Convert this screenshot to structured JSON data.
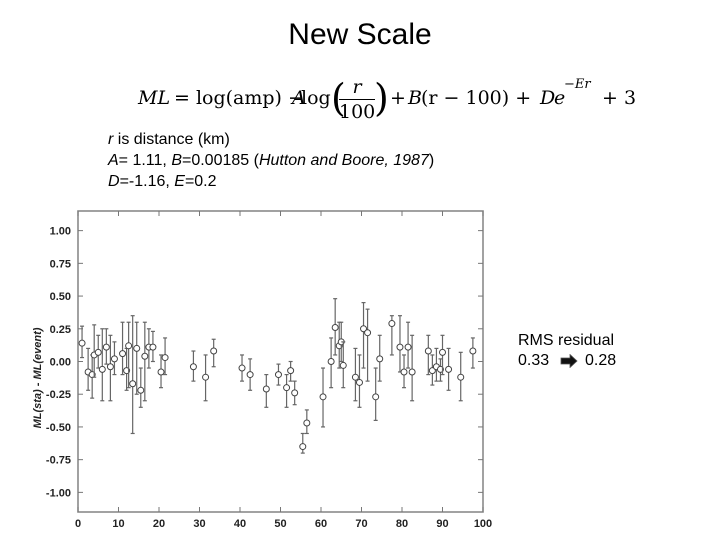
{
  "slide": {
    "title": "New Scale",
    "formula": {
      "ml": "ML",
      "eq": "= log(amp) − ",
      "a": "A",
      "log": " log",
      "frac_num": "r",
      "frac_den": "100",
      "plus1": "+ ",
      "b": "B",
      "mid": "(r − 100) + ",
      "d": "D",
      "e": "e",
      "exp": "−Er",
      "end": "+ 3"
    },
    "description": {
      "line1_var": "r",
      "line1_rest": " is distance (km)",
      "line2_a": "A",
      "line2_a_val": "= 1.11, ",
      "line2_b": "B",
      "line2_b_val": "=0.00185 (",
      "line2_ref": "Hutton and Boore, 1987",
      "line2_close": ")",
      "line3_d": "D",
      "line3_d_val": "=-1.16, ",
      "line3_e": "E",
      "line3_e_val": "=0.2"
    },
    "rms": {
      "label": "RMS residual",
      "before": "0.33",
      "after": "0.28",
      "arrow_icon": "right-arrow-icon"
    }
  },
  "chart_data": {
    "type": "scatter",
    "title": "",
    "xlabel": "",
    "ylabel": "ML(sta) - ML(event)",
    "xlim": [
      0,
      100
    ],
    "ylim": [
      -1.15,
      1.15
    ],
    "x_ticks": [
      0,
      10,
      20,
      30,
      40,
      50,
      60,
      70,
      80,
      90,
      100
    ],
    "y_ticks": [
      1.0,
      0.75,
      0.5,
      0.25,
      0.0,
      -0.25,
      -0.5,
      -0.75,
      -1.0
    ],
    "y_tick_labels": [
      "1.00",
      "0.75",
      "0.50",
      "0.25",
      "0.00",
      "-0.25",
      "-0.50",
      "-0.75",
      "-1.00"
    ],
    "grid": false,
    "error_bars": true,
    "points": [
      {
        "x": 1,
        "y": 0.14,
        "lo": 0.03,
        "hi": 0.27
      },
      {
        "x": 2.5,
        "y": -0.08,
        "lo": -0.22,
        "hi": 0.1
      },
      {
        "x": 3.5,
        "y": -0.1,
        "lo": -0.28,
        "hi": 0.05
      },
      {
        "x": 4,
        "y": 0.05,
        "lo": -0.12,
        "hi": 0.28
      },
      {
        "x": 5,
        "y": 0.07,
        "lo": -0.05,
        "hi": 0.2
      },
      {
        "x": 6,
        "y": -0.06,
        "lo": -0.3,
        "hi": 0.25
      },
      {
        "x": 7,
        "y": 0.11,
        "lo": -0.02,
        "hi": 0.25
      },
      {
        "x": 8,
        "y": -0.04,
        "lo": -0.3,
        "hi": 0.2
      },
      {
        "x": 9,
        "y": 0.02,
        "lo": -0.1,
        "hi": 0.15
      },
      {
        "x": 11,
        "y": 0.06,
        "lo": -0.1,
        "hi": 0.3
      },
      {
        "x": 12,
        "y": -0.07,
        "lo": -0.22,
        "hi": 0.1
      },
      {
        "x": 12.5,
        "y": 0.12,
        "lo": -0.2,
        "hi": 0.3
      },
      {
        "x": 13.5,
        "y": -0.17,
        "lo": -0.55,
        "hi": 0.35
      },
      {
        "x": 14.5,
        "y": 0.1,
        "lo": -0.25,
        "hi": 0.3
      },
      {
        "x": 15.5,
        "y": -0.22,
        "lo": -0.35,
        "hi": -0.05
      },
      {
        "x": 16.5,
        "y": 0.04,
        "lo": -0.3,
        "hi": 0.3
      },
      {
        "x": 17.5,
        "y": 0.11,
        "lo": -0.05,
        "hi": 0.25
      },
      {
        "x": 18.5,
        "y": 0.11,
        "lo": 0.0,
        "hi": 0.23
      },
      {
        "x": 20.5,
        "y": -0.08,
        "lo": -0.2,
        "hi": 0.05
      },
      {
        "x": 21.5,
        "y": 0.03,
        "lo": -0.1,
        "hi": 0.18
      },
      {
        "x": 28.5,
        "y": -0.04,
        "lo": -0.15,
        "hi": 0.08
      },
      {
        "x": 31.5,
        "y": -0.12,
        "lo": -0.3,
        "hi": 0.05
      },
      {
        "x": 33.5,
        "y": 0.08,
        "lo": -0.04,
        "hi": 0.17
      },
      {
        "x": 40.5,
        "y": -0.05,
        "lo": -0.15,
        "hi": 0.05
      },
      {
        "x": 42.5,
        "y": -0.1,
        "lo": -0.22,
        "hi": 0.02
      },
      {
        "x": 46.5,
        "y": -0.21,
        "lo": -0.35,
        "hi": -0.1
      },
      {
        "x": 49.5,
        "y": -0.1,
        "lo": -0.18,
        "hi": -0.02
      },
      {
        "x": 51.5,
        "y": -0.2,
        "lo": -0.35,
        "hi": -0.1
      },
      {
        "x": 52.5,
        "y": -0.07,
        "lo": -0.15,
        "hi": 0.0
      },
      {
        "x": 53.5,
        "y": -0.24,
        "lo": -0.33,
        "hi": -0.15
      },
      {
        "x": 55.5,
        "y": -0.65,
        "lo": -0.7,
        "hi": -0.55
      },
      {
        "x": 56.5,
        "y": -0.47,
        "lo": -0.55,
        "hi": -0.37
      },
      {
        "x": 60.5,
        "y": -0.27,
        "lo": -0.5,
        "hi": -0.05
      },
      {
        "x": 62.5,
        "y": 0.0,
        "lo": -0.2,
        "hi": 0.18
      },
      {
        "x": 63.5,
        "y": 0.26,
        "lo": 0.05,
        "hi": 0.48
      },
      {
        "x": 64.5,
        "y": 0.12,
        "lo": -0.05,
        "hi": 0.3
      },
      {
        "x": 65,
        "y": 0.15,
        "lo": 0.0,
        "hi": 0.3
      },
      {
        "x": 65.5,
        "y": -0.03,
        "lo": -0.2,
        "hi": 0.15
      },
      {
        "x": 68.5,
        "y": -0.12,
        "lo": -0.3,
        "hi": 0.1
      },
      {
        "x": 69.5,
        "y": -0.16,
        "lo": -0.35,
        "hi": 0.05
      },
      {
        "x": 70.5,
        "y": 0.25,
        "lo": -0.05,
        "hi": 0.45
      },
      {
        "x": 71.5,
        "y": 0.22,
        "lo": -0.15,
        "hi": 0.4
      },
      {
        "x": 73.5,
        "y": -0.27,
        "lo": -0.45,
        "hi": -0.05
      },
      {
        "x": 74.5,
        "y": 0.02,
        "lo": -0.15,
        "hi": 0.2
      },
      {
        "x": 77.5,
        "y": 0.29,
        "lo": 0.05,
        "hi": 0.35
      },
      {
        "x": 79.5,
        "y": 0.11,
        "lo": -0.08,
        "hi": 0.35
      },
      {
        "x": 80.5,
        "y": -0.08,
        "lo": -0.2,
        "hi": 0.05
      },
      {
        "x": 81.5,
        "y": 0.11,
        "lo": -0.05,
        "hi": 0.3
      },
      {
        "x": 82.5,
        "y": -0.08,
        "lo": -0.3,
        "hi": 0.2
      },
      {
        "x": 86.5,
        "y": 0.08,
        "lo": -0.1,
        "hi": 0.2
      },
      {
        "x": 87.5,
        "y": -0.07,
        "lo": -0.18,
        "hi": 0.05
      },
      {
        "x": 88.5,
        "y": -0.04,
        "lo": -0.15,
        "hi": 0.1
      },
      {
        "x": 89.5,
        "y": -0.06,
        "lo": -0.15,
        "hi": 0.02
      },
      {
        "x": 90,
        "y": 0.07,
        "lo": -0.1,
        "hi": 0.2
      },
      {
        "x": 91.5,
        "y": -0.06,
        "lo": -0.22,
        "hi": 0.1
      },
      {
        "x": 94.5,
        "y": -0.12,
        "lo": -0.3,
        "hi": 0.07
      },
      {
        "x": 97.5,
        "y": 0.08,
        "lo": -0.05,
        "hi": 0.18
      }
    ]
  }
}
